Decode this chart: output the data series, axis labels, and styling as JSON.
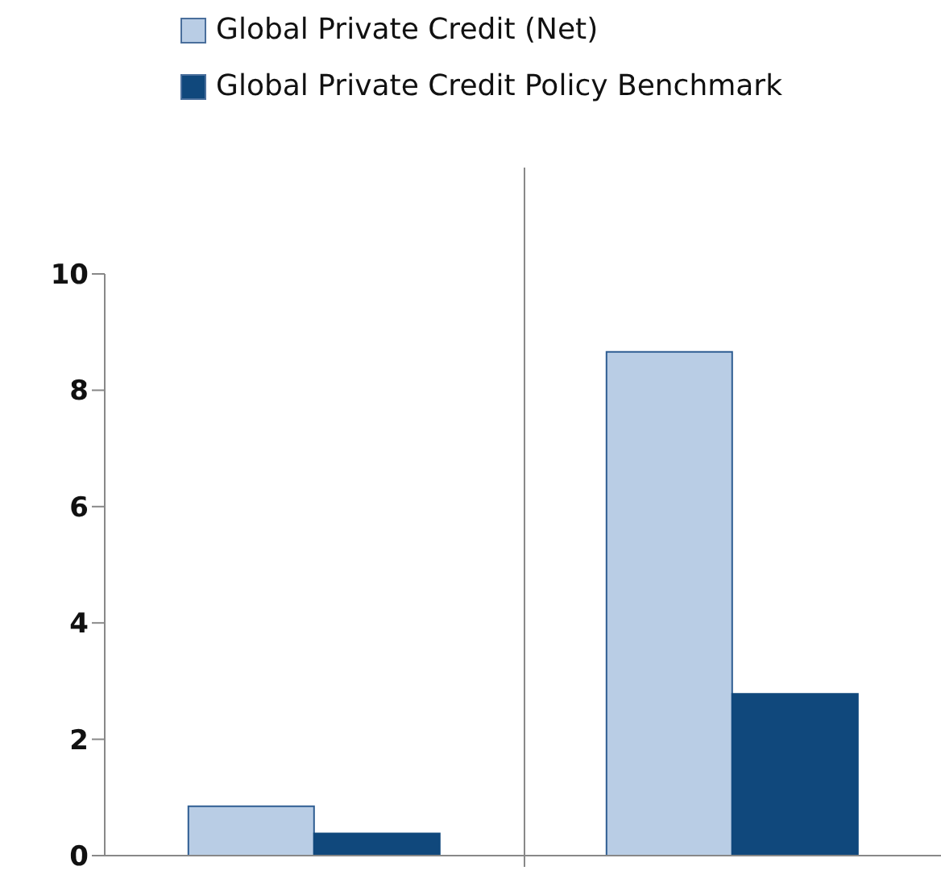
{
  "chart_data": {
    "type": "bar",
    "categories": [
      null,
      null
    ],
    "series": [
      {
        "name": "Global Private Credit (Net)",
        "color": "#b9cde5",
        "values": [
          0.85,
          8.66
        ]
      },
      {
        "name": "Global Private Credit Policy Benchmark",
        "color": "#10487c",
        "values": [
          0.38,
          2.78
        ]
      }
    ],
    "ylim": [
      0,
      10
    ],
    "yticks": [
      0,
      2,
      4,
      6,
      8,
      10
    ],
    "grid": false,
    "legend": "top left"
  }
}
